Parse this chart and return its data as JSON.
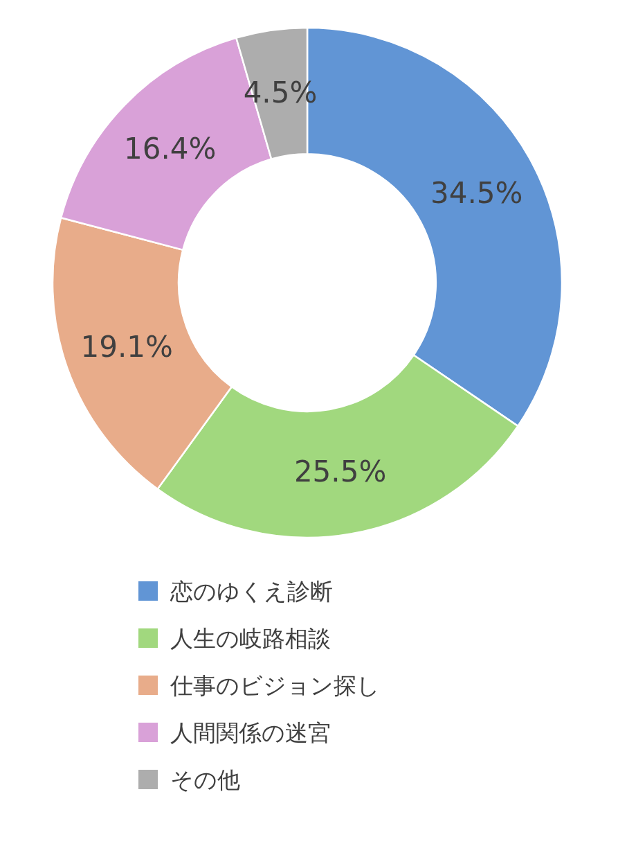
{
  "chart_data": {
    "type": "donut",
    "categories": [
      "恋のゆくえ診断",
      "人生の岐路相談",
      "仕事のビジョン探し",
      "人間関係の迷宮",
      "その他"
    ],
    "values": [
      34.5,
      25.5,
      19.1,
      16.4,
      4.5
    ],
    "colors": [
      "#6195d5",
      "#a1d87e",
      "#e8ac8a",
      "#d9a1d8",
      "#adadad"
    ],
    "value_labels": [
      "34.5%",
      "25.5%",
      "19.1%",
      "16.4%",
      "4.5%"
    ],
    "legend": "bottom"
  }
}
